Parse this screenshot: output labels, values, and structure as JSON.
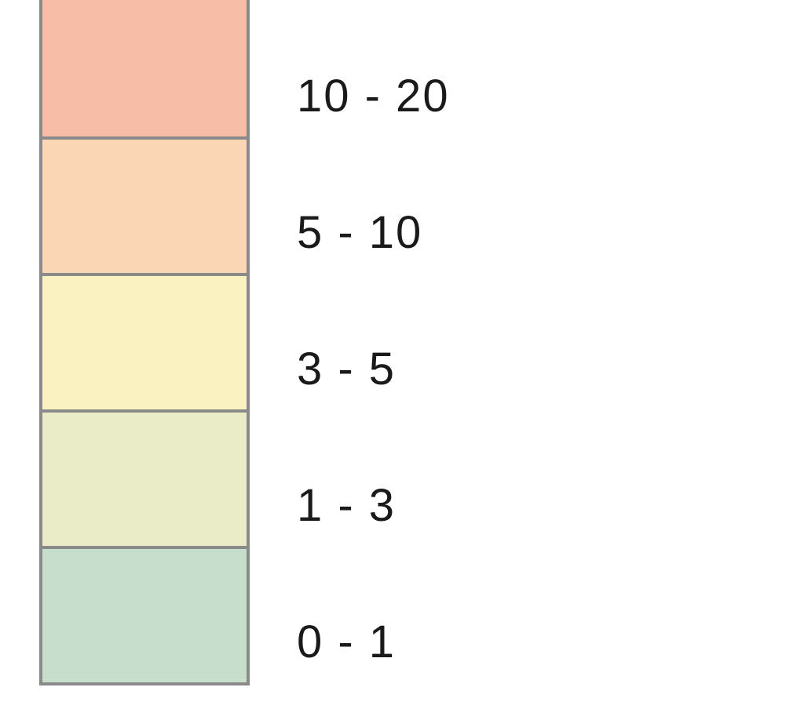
{
  "legend": {
    "type": "color-legend",
    "border_color": "#8a8a8a",
    "border_width": 4,
    "swatch_width": 260,
    "swatch_height": 174,
    "label_fontsize": 58,
    "label_color": "#1a1a1a",
    "label_font_family": "Verdana",
    "background_color": "#ffffff",
    "items": [
      {
        "color": "#f7bda6",
        "label": "10 - 20"
      },
      {
        "color": "#fad6b4",
        "label": "5 - 10"
      },
      {
        "color": "#faf3c1",
        "label": "3 - 5"
      },
      {
        "color": "#e9ecc6",
        "label": "1 - 3"
      },
      {
        "color": "#c6decb",
        "label": "0 - 1"
      }
    ]
  }
}
